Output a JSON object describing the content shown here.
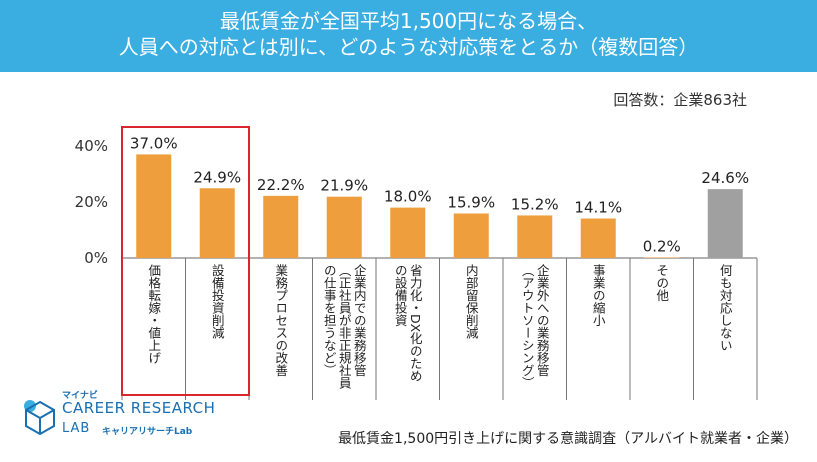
{
  "header": {
    "line1": "最低賃金が全国平均1,500円になる場合、",
    "line2": "人員への対応とは別に、どのような対応策をとるか（複数回答）"
  },
  "respondents": "回答数：企業863社",
  "footer": {
    "title": "最低賃金1,500円引き上げに関する意識調査（アルバイト就業者・企業）"
  },
  "logo": {
    "small": "マイナビ",
    "main": "CAREER RESEARCH",
    "lab": "LAB",
    "sub": "キャリアリサーチLab"
  },
  "colors": {
    "header": "#3aaee0",
    "bar": "#ee9e3d",
    "bar_none": "#a0a0a0",
    "highlight": "#d9262c"
  },
  "chart_data": {
    "type": "bar",
    "ylabel": "",
    "ylim": [
      0,
      45
    ],
    "yticks": [
      "40%",
      "20%",
      "0%"
    ],
    "ytick_values": [
      40,
      20,
      0
    ],
    "categories": [
      "価格転嫁・値上げ",
      "設備投資削減",
      "業務プロセスの改善",
      "企業内での業務移管（正社員が非正規社員の仕事を担うなど）",
      "省力化・DX化のための設備投資",
      "内部留保削減",
      "企業外への業務移管（アウトソーシング）",
      "事業の縮小",
      "その他",
      "何も対応しない"
    ],
    "label_columns": [
      [
        "価格転嫁・値上げ"
      ],
      [
        "設備投資削減"
      ],
      [
        "業務プロセスの改善"
      ],
      [
        "企業内での業務移管",
        "（正社員が非正規社員",
        "の仕事を担うなど）"
      ],
      [
        "省力化・DX化のため",
        "の設備投資"
      ],
      [
        "内部留保削減"
      ],
      [
        "企業外への業務移管",
        "（アウトソーシング）"
      ],
      [
        "事業の縮小"
      ],
      [
        "その他"
      ],
      [
        "何も対応しない"
      ]
    ],
    "values": [
      37.0,
      24.9,
      22.2,
      21.9,
      18.0,
      15.9,
      15.2,
      14.1,
      0.2,
      24.6
    ],
    "value_labels": [
      "37.0%",
      "24.9%",
      "22.2%",
      "21.9%",
      "18.0%",
      "15.9%",
      "15.2%",
      "14.1%",
      "0.2%",
      "24.6%"
    ],
    "highlighted": [
      0,
      1
    ]
  }
}
